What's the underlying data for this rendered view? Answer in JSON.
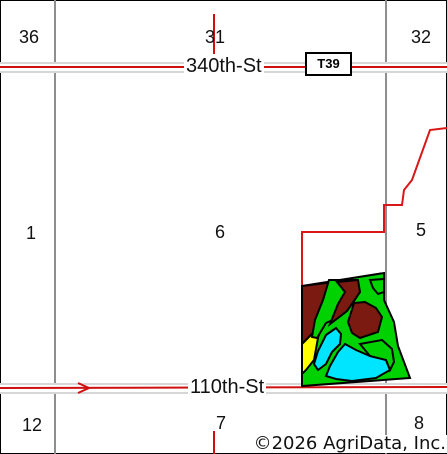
{
  "map": {
    "roads": [
      {
        "name": "340th St",
        "label": "340th-St"
      },
      {
        "name": "110th St",
        "label": "110th-St"
      }
    ],
    "township_label": "T39",
    "sections": {
      "s36": "36",
      "s31": "31",
      "s32": "32",
      "s1": "1",
      "s6": "6",
      "s5": "5",
      "s12": "12",
      "s7": "7",
      "s8": "8"
    },
    "copyright": "©2026 AgriData, Inc.",
    "colors": {
      "road_line": "#c8c8c8",
      "road_edge": "#d01010",
      "boundary": "#d81818",
      "section_line": "#8e8e8e",
      "soil_green": "#00d100",
      "soil_yellow": "#ffff00",
      "soil_cyan": "#00e5ff",
      "soil_brown": "#7a1a10",
      "outline": "#000000"
    }
  }
}
